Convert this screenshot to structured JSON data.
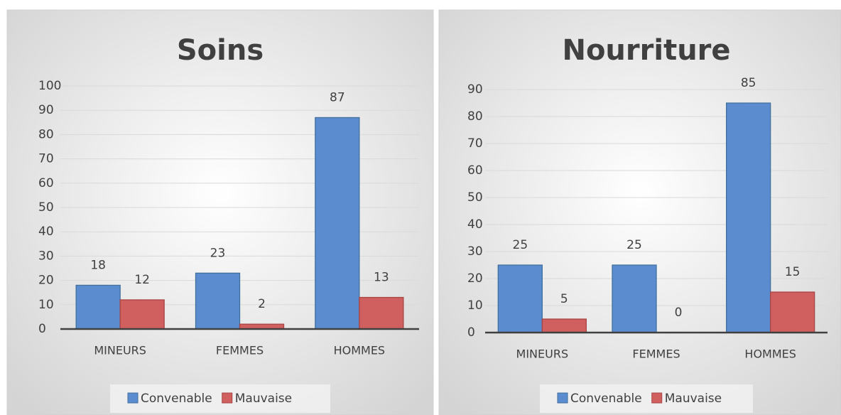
{
  "chart_data": [
    {
      "type": "bar",
      "title": "Soins",
      "categories": [
        "MINEURS",
        "FEMMES",
        "HOMMES"
      ],
      "series": [
        {
          "name": "Convenable",
          "color": "#5b8ccf",
          "values": [
            18,
            23,
            87
          ]
        },
        {
          "name": "Mauvaise",
          "color": "#d05f5f",
          "values": [
            12,
            2,
            13
          ]
        }
      ],
      "ylim": [
        0,
        100
      ],
      "yticks": [
        0,
        10,
        20,
        30,
        40,
        50,
        60,
        70,
        80,
        90,
        100
      ],
      "grid": true,
      "legend": "bottom"
    },
    {
      "type": "bar",
      "title": "Nourriture",
      "categories": [
        "MINEURS",
        "FEMMES",
        "HOMMES"
      ],
      "series": [
        {
          "name": "Convenable",
          "color": "#5b8ccf",
          "values": [
            25,
            25,
            85
          ]
        },
        {
          "name": "Mauvaise",
          "color": "#d05f5f",
          "values": [
            5,
            0,
            15
          ]
        }
      ],
      "ylim": [
        0,
        90
      ],
      "yticks": [
        0,
        10,
        20,
        30,
        40,
        50,
        60,
        70,
        80,
        90
      ],
      "grid": true,
      "legend": "bottom"
    }
  ]
}
